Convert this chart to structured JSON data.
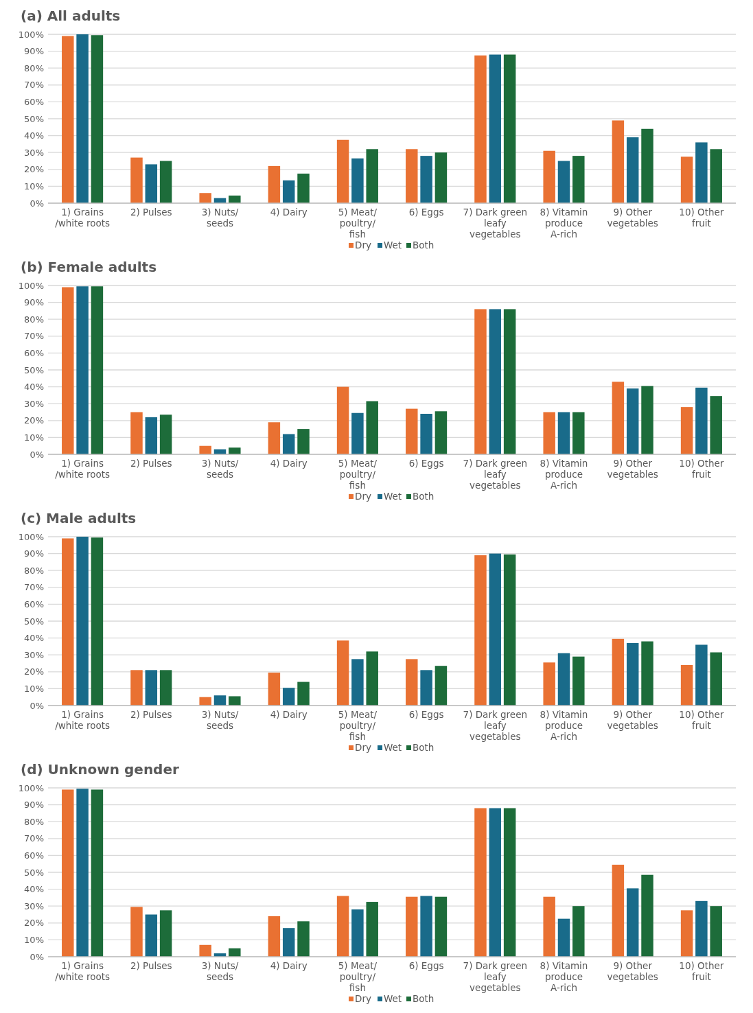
{
  "chart_data": [
    {
      "type": "bar",
      "title": "(a) All adults",
      "categories": [
        "1) Grains\n/white roots",
        "2) Pulses",
        "3) Nuts/\nseeds",
        "4) Dairy",
        "5) Meat/\npoultry/\nfish",
        "6) Eggs",
        "7) Dark green\nleafy\nvegetables",
        "8) Vitamin\nproduce\nA-rich",
        "9) Other\nvegetables",
        "10) Other\nfruit"
      ],
      "series": [
        {
          "name": "Dry",
          "color": "#e97132",
          "values": [
            99,
            27,
            6,
            22,
            37.5,
            32,
            87.5,
            31,
            49,
            27.5
          ]
        },
        {
          "name": "Wet",
          "color": "#196b8a",
          "values": [
            100,
            23,
            3,
            13.5,
            26.5,
            28,
            88,
            25,
            39,
            36
          ]
        },
        {
          "name": "Both",
          "color": "#1d6c3a",
          "values": [
            99.5,
            25,
            4.5,
            17.5,
            32,
            30,
            88,
            28,
            44,
            32
          ]
        }
      ],
      "ylim": [
        0,
        100
      ],
      "yticks": [
        {
          "value": 0,
          "label": "0%"
        },
        {
          "value": 10,
          "label": "10%"
        },
        {
          "value": 20,
          "label": "20%"
        },
        {
          "value": 30,
          "label": "30%"
        },
        {
          "value": 40,
          "label": "40%"
        },
        {
          "value": 50,
          "label": "50%"
        },
        {
          "value": 60,
          "label": "60%"
        },
        {
          "value": 70,
          "label": "70%"
        },
        {
          "value": 80,
          "label": "80%"
        },
        {
          "value": 90,
          "label": "90%"
        },
        {
          "value": 100,
          "label": "100%"
        }
      ],
      "grid": "y",
      "legend": "bottom"
    },
    {
      "type": "bar",
      "title": "(b) Female adults",
      "categories": [
        "1) Grains\n/white roots",
        "2) Pulses",
        "3) Nuts/\nseeds",
        "4) Dairy",
        "5) Meat/\npoultry/\nfish",
        "6) Eggs",
        "7) Dark green\nleafy\nvegetables",
        "8) Vitamin\nproduce\nA-rich",
        "9) Other\nvegetables",
        "10) Other\nfruit"
      ],
      "series": [
        {
          "name": "Dry",
          "color": "#e97132",
          "values": [
            99,
            25,
            5,
            19,
            40,
            27,
            86,
            25,
            43,
            28
          ]
        },
        {
          "name": "Wet",
          "color": "#196b8a",
          "values": [
            99.5,
            22,
            3,
            12,
            24.5,
            24,
            86,
            25,
            39,
            39.5
          ]
        },
        {
          "name": "Both",
          "color": "#1d6c3a",
          "values": [
            99.5,
            23.5,
            4,
            15,
            31.5,
            25.5,
            86,
            25,
            40.5,
            34.5
          ]
        }
      ],
      "ylim": [
        0,
        100
      ],
      "yticks": [
        {
          "value": 0,
          "label": "0%"
        },
        {
          "value": 10,
          "label": "10%"
        },
        {
          "value": 20,
          "label": "20%"
        },
        {
          "value": 30,
          "label": "30%"
        },
        {
          "value": 40,
          "label": "40%"
        },
        {
          "value": 50,
          "label": "50%"
        },
        {
          "value": 60,
          "label": "60%"
        },
        {
          "value": 70,
          "label": "70%"
        },
        {
          "value": 80,
          "label": "80%"
        },
        {
          "value": 90,
          "label": "90%"
        },
        {
          "value": 100,
          "label": "100%"
        }
      ],
      "grid": "y",
      "legend": "bottom"
    },
    {
      "type": "bar",
      "title": "(c) Male adults",
      "categories": [
        "1) Grains\n/white roots",
        "2) Pulses",
        "3) Nuts/\nseeds",
        "4) Dairy",
        "5) Meat/\npoultry/\nfish",
        "6) Eggs",
        "7) Dark green\nleafy\nvegetables",
        "8) Vitamin\nproduce\nA-rich",
        "9) Other\nvegetables",
        "10) Other\nfruit"
      ],
      "series": [
        {
          "name": "Dry",
          "color": "#e97132",
          "values": [
            99,
            21,
            5,
            19.5,
            38.5,
            27.5,
            89,
            25.5,
            39.5,
            24
          ]
        },
        {
          "name": "Wet",
          "color": "#196b8a",
          "values": [
            100,
            21,
            6,
            10.5,
            27.5,
            21,
            90,
            31,
            37,
            36
          ]
        },
        {
          "name": "Both",
          "color": "#1d6c3a",
          "values": [
            99.5,
            21,
            5.5,
            14,
            32,
            23.5,
            89.5,
            29,
            38,
            31.5
          ]
        }
      ],
      "ylim": [
        0,
        100
      ],
      "yticks": [
        {
          "value": 0,
          "label": "0%"
        },
        {
          "value": 10,
          "label": "10%"
        },
        {
          "value": 20,
          "label": "20%"
        },
        {
          "value": 30,
          "label": "30%"
        },
        {
          "value": 40,
          "label": "40%"
        },
        {
          "value": 50,
          "label": "50%"
        },
        {
          "value": 60,
          "label": "60%"
        },
        {
          "value": 70,
          "label": "70%"
        },
        {
          "value": 80,
          "label": "80%"
        },
        {
          "value": 90,
          "label": "90%"
        },
        {
          "value": 100,
          "label": "100%"
        }
      ],
      "grid": "y",
      "legend": "bottom"
    },
    {
      "type": "bar",
      "title": "(d) Unknown gender",
      "categories": [
        "1) Grains\n/white roots",
        "2) Pulses",
        "3) Nuts/\nseeds",
        "4) Dairy",
        "5) Meat/\npoultry/\nfish",
        "6) Eggs",
        "7) Dark green\nleafy\nvegetables",
        "8) Vitamin\nproduce\nA-rich",
        "9) Other\nvegetables",
        "10) Other\nfruit"
      ],
      "series": [
        {
          "name": "Dry",
          "color": "#e97132",
          "values": [
            99,
            29.5,
            7,
            24,
            36,
            35.5,
            88,
            35.5,
            54.5,
            27.5
          ]
        },
        {
          "name": "Wet",
          "color": "#196b8a",
          "values": [
            99.5,
            25,
            2,
            17,
            28,
            36,
            88,
            22.5,
            40.5,
            33
          ]
        },
        {
          "name": "Both",
          "color": "#1d6c3a",
          "values": [
            99,
            27.5,
            5,
            21,
            32.5,
            35.5,
            88,
            30,
            48.5,
            30
          ]
        }
      ],
      "ylim": [
        0,
        100
      ],
      "yticks": [
        {
          "value": 0,
          "label": "0%"
        },
        {
          "value": 10,
          "label": "10%"
        },
        {
          "value": 20,
          "label": "20%"
        },
        {
          "value": 30,
          "label": "30%"
        },
        {
          "value": 40,
          "label": "40%"
        },
        {
          "value": 50,
          "label": "50%"
        },
        {
          "value": 60,
          "label": "60%"
        },
        {
          "value": 70,
          "label": "70%"
        },
        {
          "value": 80,
          "label": "80%"
        },
        {
          "value": 90,
          "label": "90%"
        },
        {
          "value": 100,
          "label": "100%"
        }
      ],
      "grid": "y",
      "legend": "bottom"
    }
  ]
}
